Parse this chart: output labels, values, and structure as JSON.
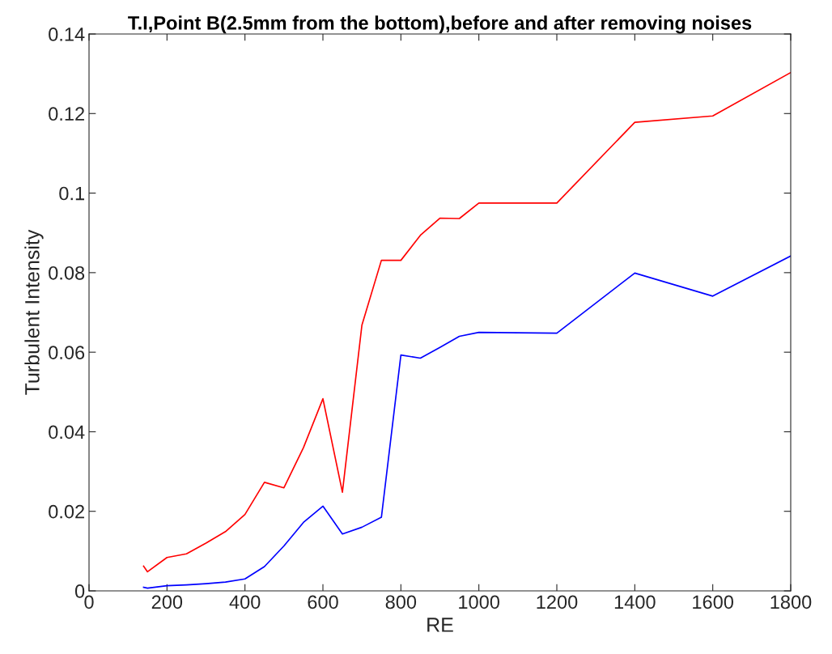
{
  "chart_data": {
    "type": "line",
    "title": "T.I,Point B(2.5mm from the bottom),before and after removing noises",
    "xlabel": "RE",
    "ylabel": "Turbulent Intensity",
    "x": [
      140,
      150,
      200,
      250,
      300,
      350,
      400,
      450,
      500,
      550,
      600,
      650,
      700,
      750,
      800,
      850,
      900,
      950,
      1000,
      1200,
      1400,
      1600,
      1800
    ],
    "series": [
      {
        "color": "#ff0000",
        "values": [
          0.0062,
          0.0048,
          0.0084,
          0.0093,
          0.012,
          0.0149,
          0.0192,
          0.0273,
          0.0259,
          0.036,
          0.0483,
          0.0248,
          0.0668,
          0.0831,
          0.0831,
          0.0894,
          0.0937,
          0.0936,
          0.0975,
          0.0975,
          0.1178,
          0.1194,
          0.1303
        ]
      },
      {
        "color": "#0000ff",
        "values": [
          0.0009,
          0.0007,
          0.0013,
          0.0015,
          0.0018,
          0.0022,
          0.003,
          0.0061,
          0.0113,
          0.0172,
          0.0213,
          0.0143,
          0.016,
          0.0185,
          0.0593,
          0.0585,
          0.0612,
          0.064,
          0.065,
          0.0648,
          0.0799,
          0.0741,
          0.0842
        ]
      }
    ],
    "xlim": [
      0,
      1800
    ],
    "xticks": [
      0,
      200,
      400,
      600,
      800,
      1000,
      1200,
      1400,
      1600,
      1800
    ],
    "ylim": [
      0,
      0.14
    ],
    "yticks": [
      0,
      0.02,
      0.04,
      0.06,
      0.08,
      0.1,
      0.12,
      0.14
    ],
    "grid": false,
    "legend": false
  }
}
